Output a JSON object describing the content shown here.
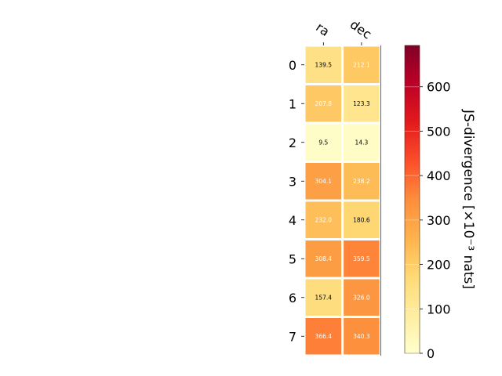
{
  "chart_data": {
    "type": "heatmap",
    "columns": [
      "ra",
      "dec"
    ],
    "rows": [
      "0",
      "1",
      "2",
      "3",
      "4",
      "5",
      "6",
      "7"
    ],
    "values": [
      [
        139.5,
        212.1
      ],
      [
        207.8,
        123.3
      ],
      [
        9.5,
        14.3
      ],
      [
        304.1,
        238.2
      ],
      [
        232.0,
        180.6
      ],
      [
        308.4,
        359.5
      ],
      [
        157.4,
        326.0
      ],
      [
        366.4,
        340.3
      ]
    ],
    "value_labels": [
      [
        "139.5",
        "212.1"
      ],
      [
        "207.8",
        "123.3"
      ],
      [
        "9.5",
        "14.3"
      ],
      [
        "304.1",
        "238.2"
      ],
      [
        "232.0",
        "180.6"
      ],
      [
        "308.4",
        "359.5"
      ],
      [
        "157.4",
        "326.0"
      ],
      [
        "366.4",
        "340.3"
      ]
    ],
    "colorbar": {
      "label": "JS-divergence [×10⁻³ nats]",
      "range": [
        0,
        693
      ],
      "ticks": [
        0,
        100,
        200,
        300,
        400,
        500,
        600
      ],
      "tick_labels": [
        "0",
        "100",
        "200",
        "300",
        "400",
        "500",
        "600"
      ],
      "colormap": "YlOrRd"
    },
    "title": "",
    "xlabel": "",
    "ylabel": "",
    "grid": false,
    "colors": {
      "cell_border": "#ffffff",
      "text_light": "#ffffff",
      "text_dark": "#000000",
      "axis": "#000000"
    }
  }
}
